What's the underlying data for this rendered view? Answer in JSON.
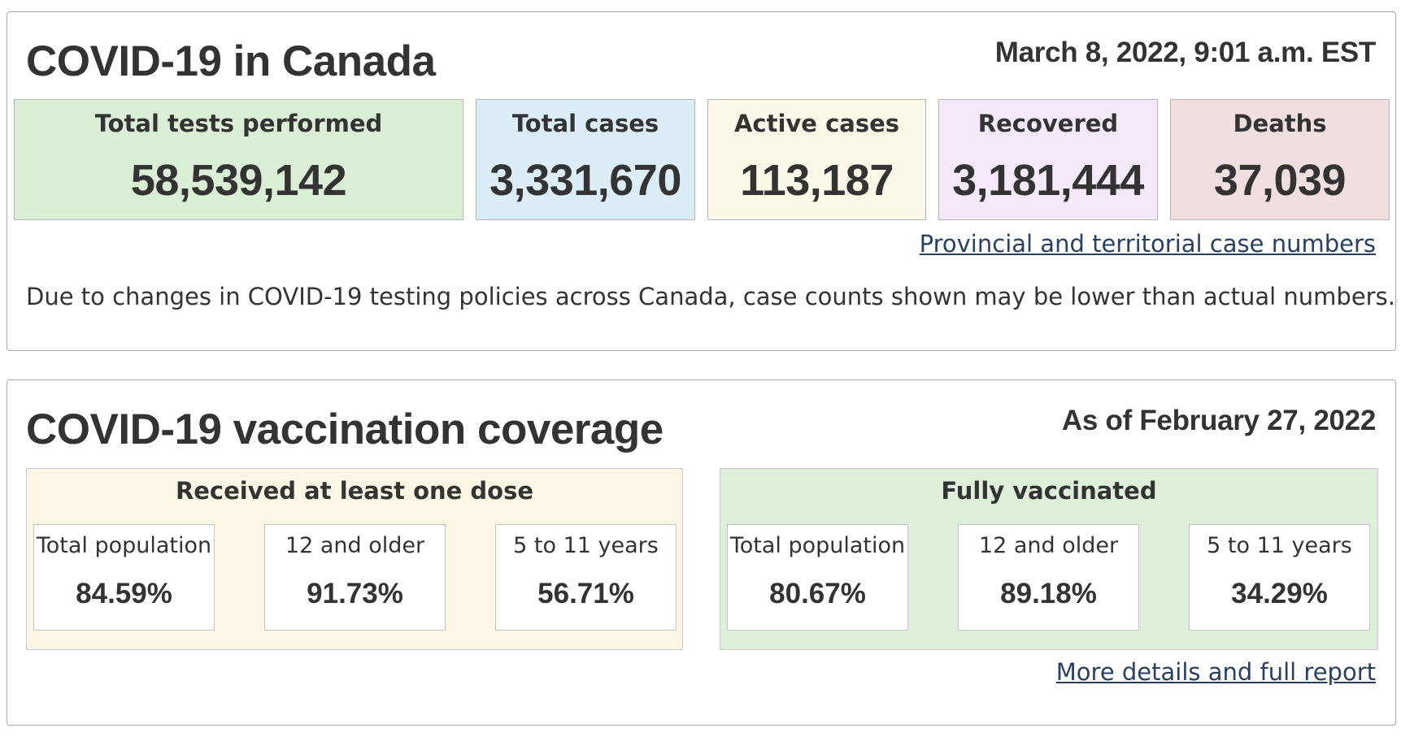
{
  "cases": {
    "title": "COVID-19 in Canada",
    "date": "March 8, 2022, 9:01 a.m. EST",
    "stats": [
      {
        "label": "Total tests performed",
        "value": "58,539,142",
        "color": "#dbefd6"
      },
      {
        "label": "Total cases",
        "value": "3,331,670",
        "color": "#dbedf6"
      },
      {
        "label": "Active cases",
        "value": "113,187",
        "color": "#fcf8e7"
      },
      {
        "label": "Recovered",
        "value": "3,181,444",
        "color": "#f4e9fb"
      },
      {
        "label": "Deaths",
        "value": "37,039",
        "color": "#f1dfe0"
      }
    ],
    "link": "Provincial and territorial case numbers",
    "note": "Due to changes in COVID-19 testing policies across Canada, case counts shown may be lower than actual numbers."
  },
  "vaccination": {
    "title": "COVID-19 vaccination coverage",
    "date": "As of February 27, 2022",
    "groups": [
      {
        "title": "Received at least one dose",
        "color": "#fcf6e4",
        "cells": [
          {
            "label": "Total population",
            "value": "84.59%"
          },
          {
            "label": "12 and older",
            "value": "91.73%"
          },
          {
            "label": "5 to 11 years",
            "value": "56.71%"
          }
        ]
      },
      {
        "title": "Fully vaccinated",
        "color": "#deefda",
        "cells": [
          {
            "label": "Total population",
            "value": "80.67%"
          },
          {
            "label": "12 and older",
            "value": "89.18%"
          },
          {
            "label": "5 to 11 years",
            "value": "34.29%"
          }
        ]
      }
    ],
    "link": "More details and full report"
  },
  "colors": {
    "text": "#333333",
    "link": "#284162",
    "border": "#a8a8a8"
  }
}
